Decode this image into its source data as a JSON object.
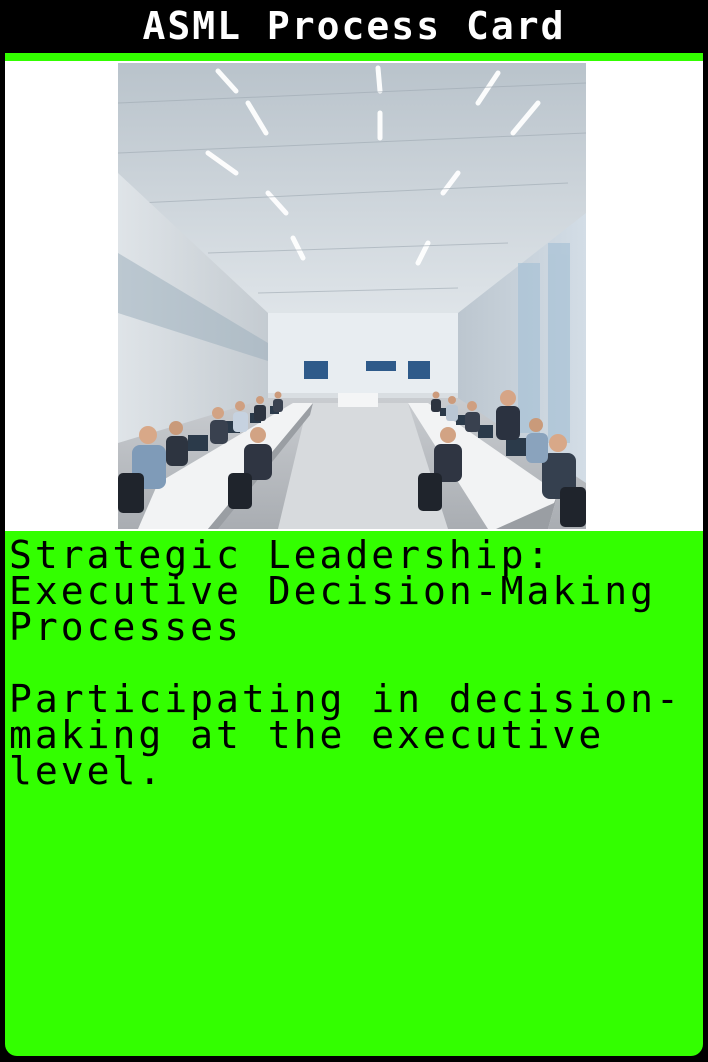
{
  "card": {
    "title": "ASML Process Card",
    "heading": "Strategic Leadership: Executive Decision-Making Processes",
    "description": "Participating in decision-making at the executive level."
  },
  "colors": {
    "accent": "#33ff00",
    "frame": "#000000",
    "image_background": "#ffffff",
    "title_text": "#ffffff",
    "body_text": "#000000"
  },
  "image": {
    "subject": "conference-room-meeting-photo"
  }
}
